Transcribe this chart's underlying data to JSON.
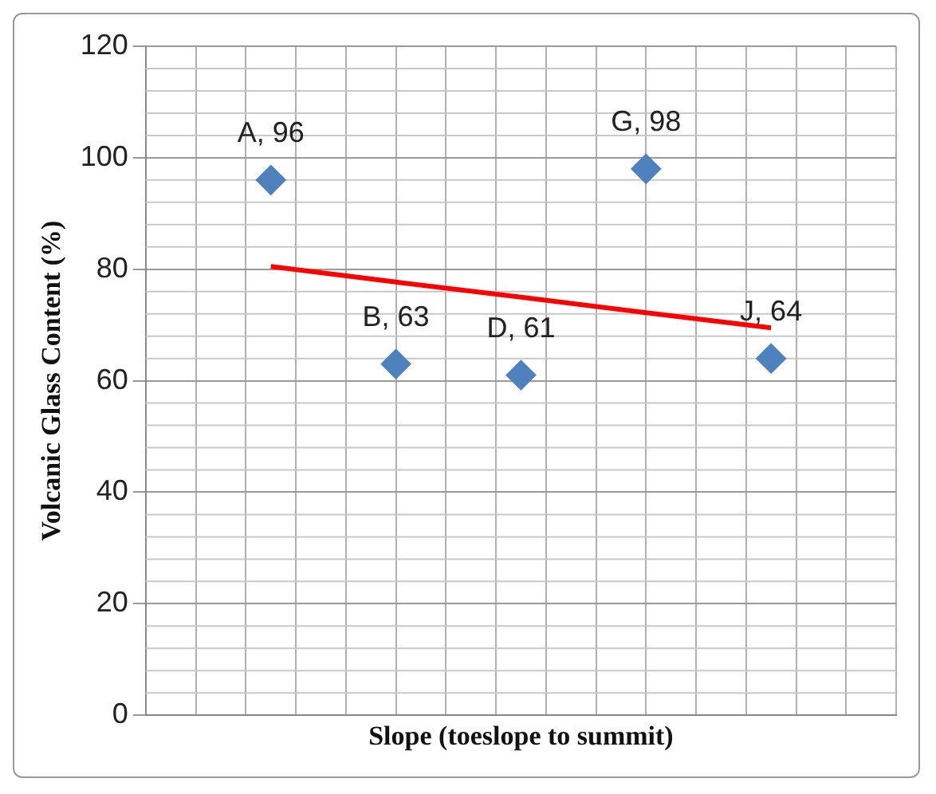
{
  "chart_data": {
    "type": "scatter",
    "xlabel": "Slope (toeslope to summit)",
    "ylabel": "Volcanic Glass Content (%)",
    "categories": [
      null,
      null,
      null,
      null,
      null
    ],
    "series": [
      {
        "type": "scatter",
        "color": "#4f81bd",
        "marker": "diamond",
        "values": [
          96,
          63,
          61,
          98,
          64
        ],
        "value_labels": [
          "A, 96",
          "B, 63",
          "D, 61",
          "G, 98",
          "J, 64"
        ]
      },
      {
        "type": "line",
        "color": "#ff0000",
        "marker": "none",
        "line_style": "solid",
        "values": [
          80.5,
          77.7,
          75,
          72.2,
          69.5
        ]
      }
    ],
    "ylim": [
      0,
      120
    ],
    "yticks": [
      0,
      20,
      40,
      60,
      80,
      100,
      120
    ],
    "grid": true,
    "legend": false,
    "tick_labels": "y"
  }
}
